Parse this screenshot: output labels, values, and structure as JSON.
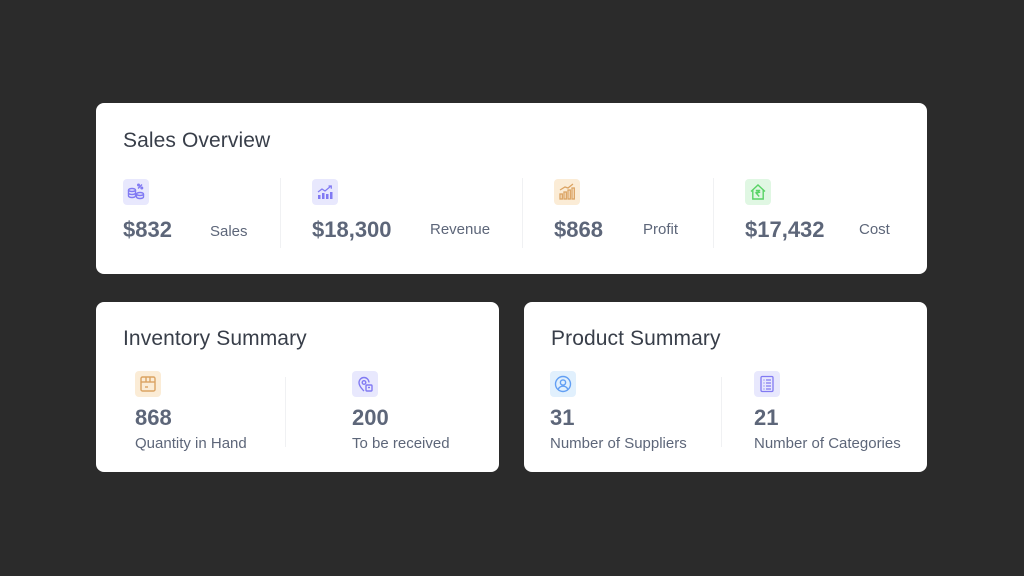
{
  "sales_overview": {
    "title": "Sales Overview",
    "items": [
      {
        "value": "$832",
        "label": "Sales",
        "icon": "sales-coins-icon",
        "color": "#817AF3"
      },
      {
        "value": "$18,300",
        "label": "Revenue",
        "icon": "revenue-chart-icon",
        "color": "#817AF3"
      },
      {
        "value": "$868",
        "label": "Profit",
        "icon": "profit-bars-icon",
        "color": "#DBA362"
      },
      {
        "value": "$17,432",
        "label": "Cost",
        "icon": "cost-rupee-house-icon",
        "color": "#58D365"
      }
    ]
  },
  "inventory_summary": {
    "title": "Inventory Summary",
    "items": [
      {
        "value": "868",
        "label": "Quantity in Hand",
        "icon": "box-icon",
        "color": "#DBA362"
      },
      {
        "value": "200",
        "label": "To be received",
        "icon": "location-pin-icon",
        "color": "#817AF3"
      }
    ]
  },
  "product_summary": {
    "title": "Product Summary",
    "items": [
      {
        "value": "31",
        "label": "Number of Suppliers",
        "icon": "user-icon",
        "color": "#629FF4"
      },
      {
        "value": "21",
        "label": "Number of Categories",
        "icon": "list-icon",
        "color": "#817AF3"
      }
    ]
  }
}
